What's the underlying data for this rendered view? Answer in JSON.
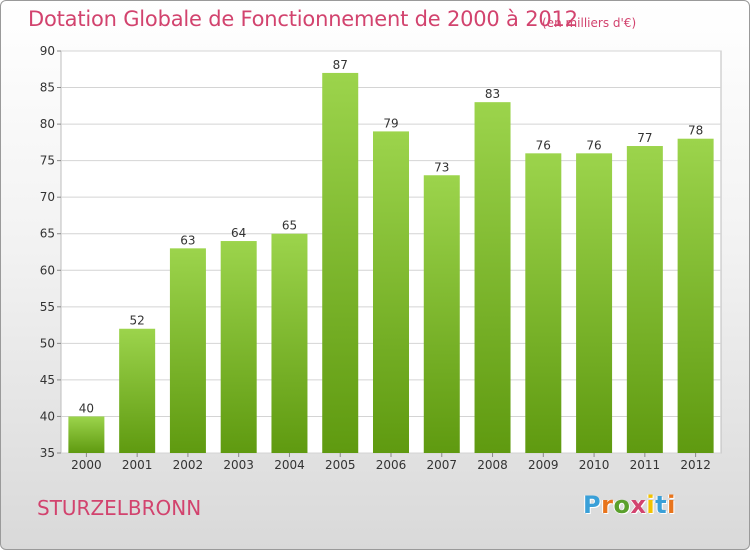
{
  "header": {
    "title": "Dotation Globale de Fonctionnement de 2000 à 2012",
    "unit": "(en milliers d'€)"
  },
  "footer": {
    "commune": "STURZELBRONN",
    "logo": "Proxiti",
    "logo_colors": [
      "#3aa0d8",
      "#e8741c",
      "#5aa02c",
      "#d2436e",
      "#f2c200",
      "#3aa0d8",
      "#e8741c"
    ]
  },
  "colors": {
    "title": "#d2436e",
    "bar_top": "#9cd44c",
    "bar_bottom": "#5f9a10",
    "grid": "#d4d4d4"
  },
  "chart_data": {
    "type": "bar",
    "title": "Dotation Globale de Fonctionnement de 2000 à 2012",
    "subtitle": "(en milliers d'€)",
    "categories": [
      "2000",
      "2001",
      "2002",
      "2003",
      "2004",
      "2005",
      "2006",
      "2007",
      "2008",
      "2009",
      "2010",
      "2011",
      "2012"
    ],
    "values": [
      40,
      52,
      63,
      64,
      65,
      87,
      79,
      73,
      83,
      76,
      76,
      77,
      78
    ],
    "ylim": [
      35,
      90
    ],
    "yticks": [
      35,
      40,
      45,
      50,
      55,
      60,
      65,
      70,
      75,
      80,
      85,
      90
    ],
    "grid": true,
    "xlabel": "",
    "ylabel": ""
  }
}
